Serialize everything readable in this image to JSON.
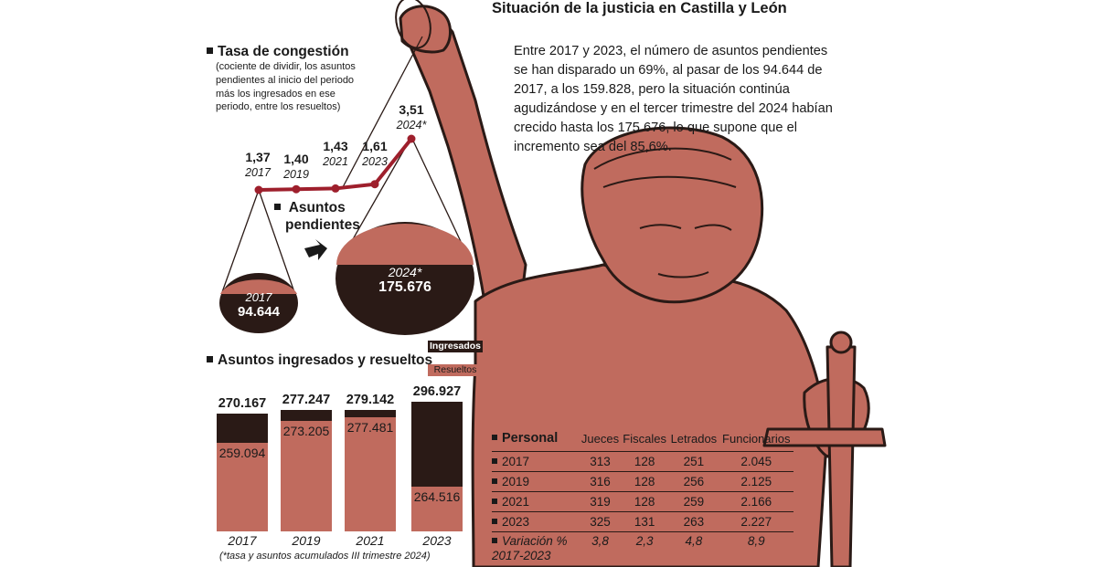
{
  "title": "Situación de la justicia en Castilla y León",
  "intro": "Entre 2017 y 2023, el número de asuntos pendientes se han disparado un 69%, al pasar de los 94.644 de 2017, a los 159.828, pero la situación continúa agudizándose y en el tercer trimestre del 2024 habían crecido hasta los 175.676, lo que supone que el incremento sea del 85,6%.",
  "colors": {
    "figure": "#c06b5e",
    "dark": "#2a1a16",
    "line": "#9e1f2c"
  },
  "congestion": {
    "title": "Tasa de congestión",
    "subtitle": "(cociente de dividir, los asuntos pendientes al inicio del periodo más los ingresados en ese periodo, entre los resueltos)"
  },
  "pending": {
    "title_line1": "Asuntos",
    "title_line2": "pendientes",
    "left_year": "2017",
    "left_value": "94.644",
    "right_year": "2024*",
    "right_value": "175.676"
  },
  "bars_section": {
    "title": "Asuntos ingresados y resueltos",
    "legend_ingresados": "Ingresados",
    "legend_resueltos": "Resueltos",
    "note": "(*tasa y asuntos acumulados III trimestre 2024)"
  },
  "chart_data": [
    {
      "type": "line",
      "title": "Tasa de congestión",
      "x": [
        "2017",
        "2019",
        "2021",
        "2023",
        "2024*"
      ],
      "values": [
        1.37,
        1.4,
        1.43,
        1.61,
        3.51
      ],
      "labels": [
        "1,37",
        "1,40",
        "1,43",
        "1,61",
        "3,51"
      ]
    },
    {
      "type": "bar",
      "title": "Asuntos ingresados y resueltos",
      "categories": [
        "2017",
        "2019",
        "2021",
        "2023"
      ],
      "series": [
        {
          "name": "Ingresados",
          "values": [
            270167,
            277247,
            279142,
            296927
          ],
          "labels": [
            "270.167",
            "277.247",
            "279.142",
            "296.927"
          ]
        },
        {
          "name": "Resueltos",
          "values": [
            259094,
            273205,
            277481,
            264516
          ],
          "labels": [
            "259.094",
            "273.205",
            "277.481",
            "264.516"
          ]
        }
      ]
    },
    {
      "type": "table",
      "title": "Personal",
      "columns": [
        "Jueces",
        "Fiscales",
        "Letrados",
        "Funcionarios"
      ],
      "rows": [
        {
          "label": "2017",
          "values": [
            "313",
            "128",
            "251",
            "2.045"
          ]
        },
        {
          "label": "2019",
          "values": [
            "316",
            "128",
            "256",
            "2.125"
          ]
        },
        {
          "label": "2021",
          "values": [
            "319",
            "128",
            "259",
            "2.166"
          ]
        },
        {
          "label": "2023",
          "values": [
            "325",
            "131",
            "263",
            "2.227"
          ]
        }
      ],
      "variation": {
        "label_line1": "Variación %",
        "label_line2": "2017-2023",
        "values": [
          "3,8",
          "2,3",
          "4,8",
          "8,9"
        ]
      }
    }
  ]
}
